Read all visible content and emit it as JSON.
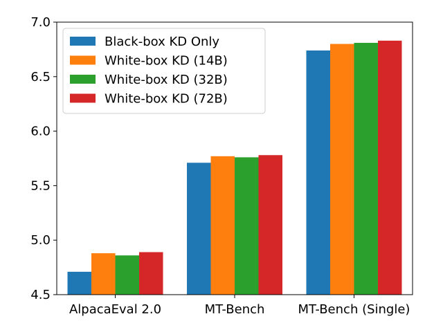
{
  "chart_data": {
    "type": "bar",
    "title": "",
    "xlabel": "",
    "ylabel": "",
    "categories": [
      "AlpacaEval 2.0",
      "MT-Bench",
      "MT-Bench (Single)"
    ],
    "ylim": [
      4.5,
      7.0
    ],
    "yticks": [
      "4.5",
      "5.0",
      "5.5",
      "6.0",
      "6.5",
      "7.0"
    ],
    "grid": false,
    "legend_position": "upper-left",
    "series": [
      {
        "name": "Black-box KD Only",
        "color": "#1f77b4",
        "values": [
          4.71,
          5.71,
          6.74
        ]
      },
      {
        "name": "White-box KD (14B)",
        "color": "#ff7f0e",
        "values": [
          4.88,
          5.77,
          6.8
        ]
      },
      {
        "name": "White-box KD (32B)",
        "color": "#2ca02c",
        "values": [
          4.86,
          5.76,
          6.81
        ]
      },
      {
        "name": "White-box KD (72B)",
        "color": "#d62728",
        "values": [
          4.89,
          5.78,
          6.83
        ]
      }
    ]
  }
}
